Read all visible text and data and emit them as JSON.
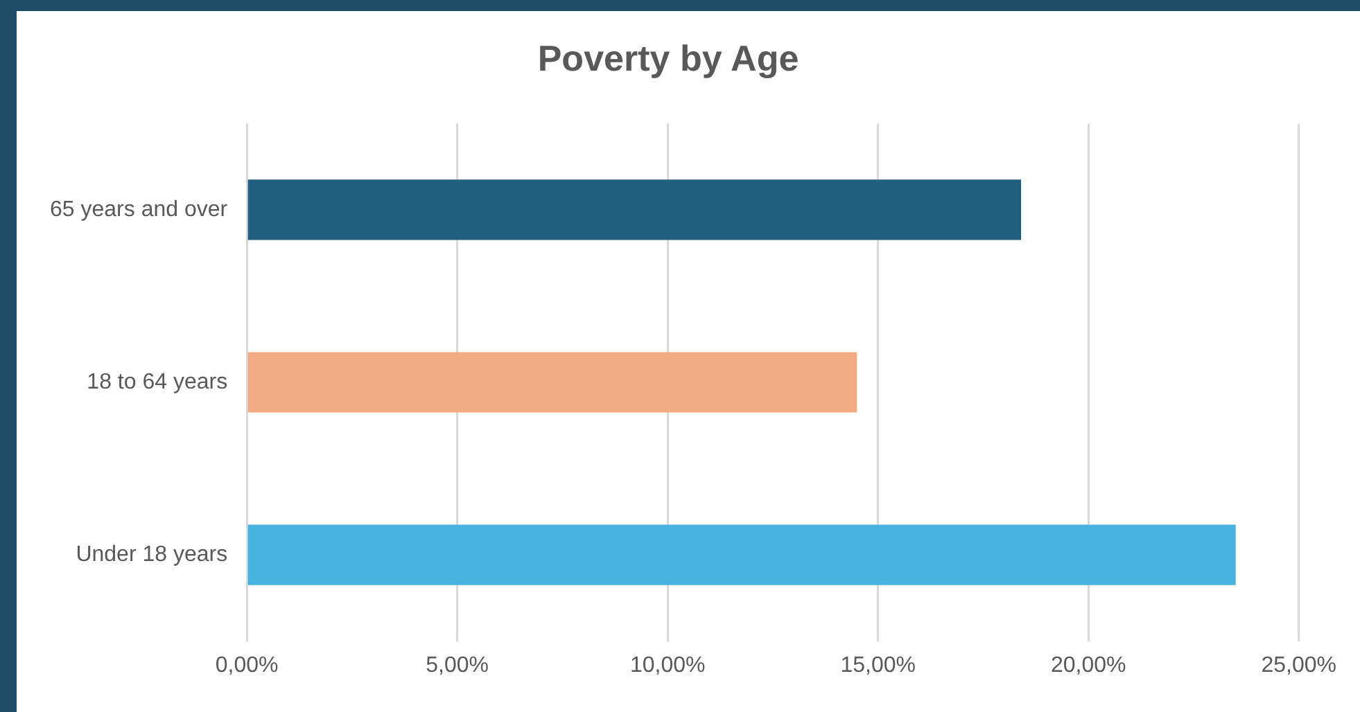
{
  "chart_data": {
    "type": "bar",
    "orientation": "horizontal",
    "title": "Poverty by Age",
    "categories": [
      "65 years and over",
      "18 to 64 years",
      "Under 18 years"
    ],
    "values": [
      18.4,
      14.5,
      23.5
    ],
    "colors": [
      "#235f7e",
      "#f2aa84",
      "#47b1e0"
    ],
    "xlim": [
      0,
      25
    ],
    "xticks": [
      {
        "value": 0,
        "label": "0,00%"
      },
      {
        "value": 5,
        "label": "5,00%"
      },
      {
        "value": 10,
        "label": "10,00%"
      },
      {
        "value": 15,
        "label": "15,00%"
      },
      {
        "value": 20,
        "label": "20,00%"
      },
      {
        "value": 25,
        "label": "25,00%"
      }
    ],
    "grid": "x",
    "legend": false
  }
}
